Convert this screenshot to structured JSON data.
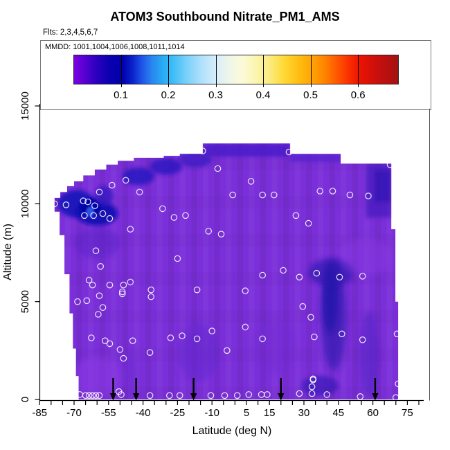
{
  "chart_data": {
    "type": "heatmap",
    "title": "ATOM3 Southbound Nitrate_PM1_AMS",
    "subtitle": "Flts: 2,3,4,5,6,7",
    "key_label": "MMDD: 1001,1004,1006,1008,1011,1014",
    "xlabel": "Latitude (deg N)",
    "ylabel": "Altitude (m)",
    "xlim": [
      -85,
      80
    ],
    "ylim": [
      0,
      16000
    ],
    "x_major_ticks": [
      -85,
      -70,
      -55,
      -40,
      -25,
      -10,
      5,
      15,
      30,
      45,
      60,
      75
    ],
    "x_minor_tick_step": 5,
    "y_ticks": [
      0,
      5000,
      10000,
      15000
    ],
    "legend_position": "top",
    "grid": false,
    "colorbar": {
      "orientation": "horizontal",
      "domain": [
        0,
        0.683
      ],
      "ticks": [
        0.1,
        0.2,
        0.3,
        0.4,
        0.5,
        0.6
      ],
      "stops": [
        [
          0.0,
          "#7C00E0"
        ],
        [
          0.03,
          "#5A00D4"
        ],
        [
          0.07,
          "#2B00BE"
        ],
        [
          0.11,
          "#0A00AE"
        ],
        [
          0.15,
          "#0000AC"
        ],
        [
          0.18,
          "#0B22CA"
        ],
        [
          0.21,
          "#1E55E8"
        ],
        [
          0.24,
          "#2A85F0"
        ],
        [
          0.275,
          "#28ACF5"
        ],
        [
          0.3,
          "#36BAF7"
        ],
        [
          0.34,
          "#70CDF9"
        ],
        [
          0.39,
          "#ACDFFB"
        ],
        [
          0.44,
          "#D9EEFB"
        ],
        [
          0.48,
          "#F0F6E8"
        ],
        [
          0.52,
          "#FCFAD8"
        ],
        [
          0.56,
          "#FBF5B0"
        ],
        [
          0.6,
          "#FBEC85"
        ],
        [
          0.65,
          "#FFD833"
        ],
        [
          0.7,
          "#FFB90E"
        ],
        [
          0.735,
          "#FFA305"
        ],
        [
          0.775,
          "#FF8200"
        ],
        [
          0.815,
          "#FF5300"
        ],
        [
          0.85,
          "#F92D00"
        ],
        [
          0.88,
          "#EC1400"
        ],
        [
          0.93,
          "#CC0F0C"
        ],
        [
          1.0,
          "#A31212"
        ]
      ]
    },
    "base_color": "#7B2FD9",
    "region_outline": [
      [
        -68,
        0
      ],
      [
        -68,
        1200
      ],
      [
        -69.2,
        1200
      ],
      [
        -69.2,
        2600
      ],
      [
        -70.5,
        2600
      ],
      [
        -70.5,
        4400
      ],
      [
        -72,
        4400
      ],
      [
        -72,
        6400
      ],
      [
        -74.2,
        6400
      ],
      [
        -74.2,
        8400
      ],
      [
        -76.3,
        8400
      ],
      [
        -76.3,
        9600
      ],
      [
        -78.5,
        9600
      ],
      [
        -78.5,
        10300
      ],
      [
        -76,
        10300
      ],
      [
        -76,
        10600
      ],
      [
        -73,
        10600
      ],
      [
        -73,
        10900
      ],
      [
        -70,
        10900
      ],
      [
        -70,
        11150
      ],
      [
        -66,
        11150
      ],
      [
        -66,
        11450
      ],
      [
        -61,
        11450
      ],
      [
        -61,
        11750
      ],
      [
        -56,
        11750
      ],
      [
        -56,
        12000
      ],
      [
        -51,
        12000
      ],
      [
        -51,
        12200
      ],
      [
        -44,
        12200
      ],
      [
        -44,
        12350
      ],
      [
        -31,
        12350
      ],
      [
        -31,
        12450
      ],
      [
        -24,
        12450
      ],
      [
        -24,
        12550
      ],
      [
        -14,
        12550
      ],
      [
        -14,
        13080
      ],
      [
        24,
        13080
      ],
      [
        24,
        12550
      ],
      [
        46,
        12550
      ],
      [
        46,
        12050
      ],
      [
        68,
        12050
      ],
      [
        68,
        8700
      ],
      [
        69.8,
        8700
      ],
      [
        69.8,
        5000
      ],
      [
        71,
        5000
      ],
      [
        71,
        0
      ]
    ],
    "features": [
      {
        "shape": "ellipse",
        "lat": -69,
        "alt": 10000,
        "rlat": 8,
        "ralt": 700,
        "color": "#1515BA",
        "opacity": 0.9,
        "blur": 3
      },
      {
        "shape": "ellipse",
        "lat": -60,
        "alt": 9500,
        "rlat": 9,
        "ralt": 620,
        "color": "#0B0BB0",
        "opacity": 0.9,
        "blur": 3
      },
      {
        "shape": "ellipse",
        "lat": -63,
        "alt": 9850,
        "rlat": 4.5,
        "ralt": 450,
        "color": "#0505A5",
        "opacity": 0.9,
        "blur": 2
      },
      {
        "shape": "ellipse",
        "lat": -63,
        "alt": 9600,
        "rlat": 1.8,
        "ralt": 260,
        "color": "#2E5BE8",
        "opacity": 0.95,
        "blur": 1.5
      },
      {
        "shape": "ellipse",
        "lat": -57,
        "alt": 10400,
        "rlat": 4,
        "ralt": 520,
        "color": "#2B16BE",
        "opacity": 0.7,
        "blur": 3
      },
      {
        "shape": "ellipse",
        "lat": -60,
        "alt": 8000,
        "rlat": 10,
        "ralt": 800,
        "color": "#5A24C8",
        "opacity": 0.5,
        "blur": 4
      },
      {
        "shape": "ellipse",
        "lat": -42,
        "alt": 11400,
        "rlat": 7,
        "ralt": 450,
        "color": "#2318BE",
        "opacity": 0.8,
        "blur": 3
      },
      {
        "shape": "ellipse",
        "lat": -30,
        "alt": 11900,
        "rlat": 7,
        "ralt": 420,
        "color": "#2A18C0",
        "opacity": 0.8,
        "blur": 3
      },
      {
        "shape": "ellipse",
        "lat": -17,
        "alt": 12250,
        "rlat": 7,
        "ralt": 380,
        "color": "#3A1CC4",
        "opacity": 0.8,
        "blur": 3
      },
      {
        "shape": "rect",
        "lat0": -13.5,
        "lat1": 23.5,
        "alt0": 12400,
        "alt1": 13060,
        "color": "#4C1EC8",
        "opacity": 0.85,
        "blur": 2
      },
      {
        "shape": "rect",
        "lat0": 24,
        "lat1": 46,
        "alt0": 12150,
        "alt1": 12560,
        "color": "#5624CE",
        "opacity": 0.75,
        "blur": 2
      },
      {
        "shape": "rect",
        "lat0": -24,
        "lat1": -14,
        "alt0": 12100,
        "alt1": 12550,
        "color": "#4E20C6",
        "opacity": 0.7,
        "blur": 2
      },
      {
        "shape": "rect",
        "lat0": 57,
        "lat1": 68,
        "alt0": 9300,
        "alt1": 12050,
        "color": "#4A1EC0",
        "opacity": 0.8,
        "blur": 3
      },
      {
        "shape": "rect",
        "lat0": 61,
        "lat1": 67.5,
        "alt0": 10100,
        "alt1": 11700,
        "color": "#3516B4",
        "opacity": 0.8,
        "blur": 2
      },
      {
        "shape": "ellipse",
        "lat": 43,
        "alt": 4300,
        "rlat": 5.5,
        "ralt": 2800,
        "color": "#3A1BB4",
        "opacity": 0.8,
        "blur": 5
      },
      {
        "shape": "ellipse",
        "lat": 41.5,
        "alt": 5200,
        "rlat": 3.4,
        "ralt": 1800,
        "color": "#2412AA",
        "opacity": 0.8,
        "blur": 4
      },
      {
        "shape": "ellipse",
        "lat": 42,
        "alt": 6500,
        "rlat": 10,
        "ralt": 700,
        "color": "#2B14AE",
        "opacity": 0.65,
        "blur": 4
      },
      {
        "shape": "ellipse",
        "lat": 37,
        "alt": 700,
        "rlat": 8,
        "ralt": 520,
        "color": "#2D15B2",
        "opacity": 0.6,
        "blur": 3
      },
      {
        "shape": "ellipse",
        "lat": 58.5,
        "alt": 2300,
        "rlat": 4,
        "ralt": 2200,
        "color": "#5021C2",
        "opacity": 0.55,
        "blur": 4
      },
      {
        "shape": "ellipse",
        "lat": -16,
        "alt": 2400,
        "rlat": 9,
        "ralt": 1500,
        "color": "#6128CC",
        "opacity": 0.5,
        "blur": 5
      },
      {
        "shape": "ellipse",
        "lat": -45,
        "alt": 1400,
        "rlat": 3,
        "ralt": 1300,
        "color": "#6A2BD0",
        "opacity": 0.45,
        "blur": 4
      },
      {
        "shape": "ellipse",
        "lat": 17,
        "alt": 2700,
        "rlat": 10,
        "ralt": 1400,
        "color": "#6F29D0",
        "opacity": 0.35,
        "blur": 5
      },
      {
        "shape": "ellipse",
        "lat": -60,
        "alt": 1100,
        "rlat": 11,
        "ralt": 1100,
        "color": "#8C3BE3",
        "opacity": 0.5,
        "blur": 5
      },
      {
        "shape": "ellipse",
        "lat": 57,
        "alt": 7300,
        "rlat": 11,
        "ralt": 1000,
        "color": "#8A3AE0",
        "opacity": 0.45,
        "blur": 5
      }
    ],
    "samples_latalt": [
      [
        -47.5,
        11200
      ],
      [
        -53.5,
        10950
      ],
      [
        -59,
        10600
      ],
      [
        -41.5,
        10600
      ],
      [
        -66,
        10150
      ],
      [
        -64,
        10100
      ],
      [
        -73.5,
        9950
      ],
      [
        -78.5,
        10000
      ],
      [
        -61,
        9900
      ],
      [
        -31.5,
        9750
      ],
      [
        -1,
        10450
      ],
      [
        -26.5,
        9300
      ],
      [
        -21.5,
        9400
      ],
      [
        -65.5,
        9400
      ],
      [
        -61.5,
        9400
      ],
      [
        -57.5,
        9500
      ],
      [
        -54.5,
        9250
      ],
      [
        -45.5,
        8700
      ],
      [
        -11.5,
        8600
      ],
      [
        -6,
        8450
      ],
      [
        -60.5,
        7600
      ],
      [
        -25,
        7200
      ],
      [
        -58.5,
        6800
      ],
      [
        -63.5,
        6100
      ],
      [
        -62,
        5850
      ],
      [
        -54.5,
        5850
      ],
      [
        -48.5,
        5850
      ],
      [
        -45.5,
        6000
      ],
      [
        -49,
        5500
      ],
      [
        -36.5,
        5600
      ],
      [
        -16.5,
        5600
      ],
      [
        4.5,
        5550
      ],
      [
        -14,
        12700
      ],
      [
        23.5,
        12650
      ],
      [
        -7.5,
        11800
      ],
      [
        67.5,
        12000
      ],
      [
        7,
        11150
      ],
      [
        12,
        10450
      ],
      [
        17,
        10450
      ],
      [
        37,
        10650
      ],
      [
        42.5,
        10650
      ],
      [
        50,
        10450
      ],
      [
        58,
        10400
      ],
      [
        26.5,
        9400
      ],
      [
        32,
        9000
      ],
      [
        21,
        6600
      ],
      [
        12,
        6350
      ],
      [
        28,
        6250
      ],
      [
        35.5,
        6450
      ],
      [
        45.5,
        6250
      ],
      [
        55.5,
        6300
      ],
      [
        -59,
        5300
      ],
      [
        -64.5,
        5050
      ],
      [
        -68.5,
        5000
      ],
      [
        -49,
        5400
      ],
      [
        -36.5,
        5250
      ],
      [
        -57.5,
        4700
      ],
      [
        -59.5,
        4350
      ],
      [
        -62.5,
        3150
      ],
      [
        -56.5,
        3000
      ],
      [
        -54.5,
        2850
      ],
      [
        -50,
        2550
      ],
      [
        -48.5,
        2100
      ],
      [
        -44.5,
        3000
      ],
      [
        -37,
        2400
      ],
      [
        -28,
        3150
      ],
      [
        -23,
        3250
      ],
      [
        -16.5,
        3100
      ],
      [
        -10,
        3500
      ],
      [
        4.5,
        3700
      ],
      [
        -3.5,
        2500
      ],
      [
        29.5,
        4750
      ],
      [
        33,
        4200
      ],
      [
        12,
        3100
      ],
      [
        34.5,
        3200
      ],
      [
        46.5,
        3350
      ],
      [
        55.5,
        3050
      ],
      [
        70.5,
        3350
      ],
      [
        34,
        1050
      ],
      [
        -67.5,
        250
      ],
      [
        -65,
        200
      ],
      [
        -63.5,
        200
      ],
      [
        -62,
        200
      ],
      [
        -60.5,
        200
      ],
      [
        -59,
        200
      ],
      [
        -50.5,
        400
      ],
      [
        -49.5,
        250
      ],
      [
        -37,
        200
      ],
      [
        -28.5,
        200
      ],
      [
        -24,
        200
      ],
      [
        -10.5,
        200
      ],
      [
        -4.5,
        200
      ],
      [
        1,
        200
      ],
      [
        6,
        250
      ],
      [
        11.5,
        250
      ],
      [
        14,
        250
      ],
      [
        28,
        300
      ],
      [
        33.5,
        300
      ],
      [
        33.5,
        650
      ],
      [
        34,
        1000
      ],
      [
        40,
        250
      ],
      [
        54.5,
        150
      ],
      [
        70,
        100
      ],
      [
        71,
        800
      ]
    ],
    "arrow_lats": [
      -53,
      -43,
      -18,
      20,
      61
    ]
  }
}
